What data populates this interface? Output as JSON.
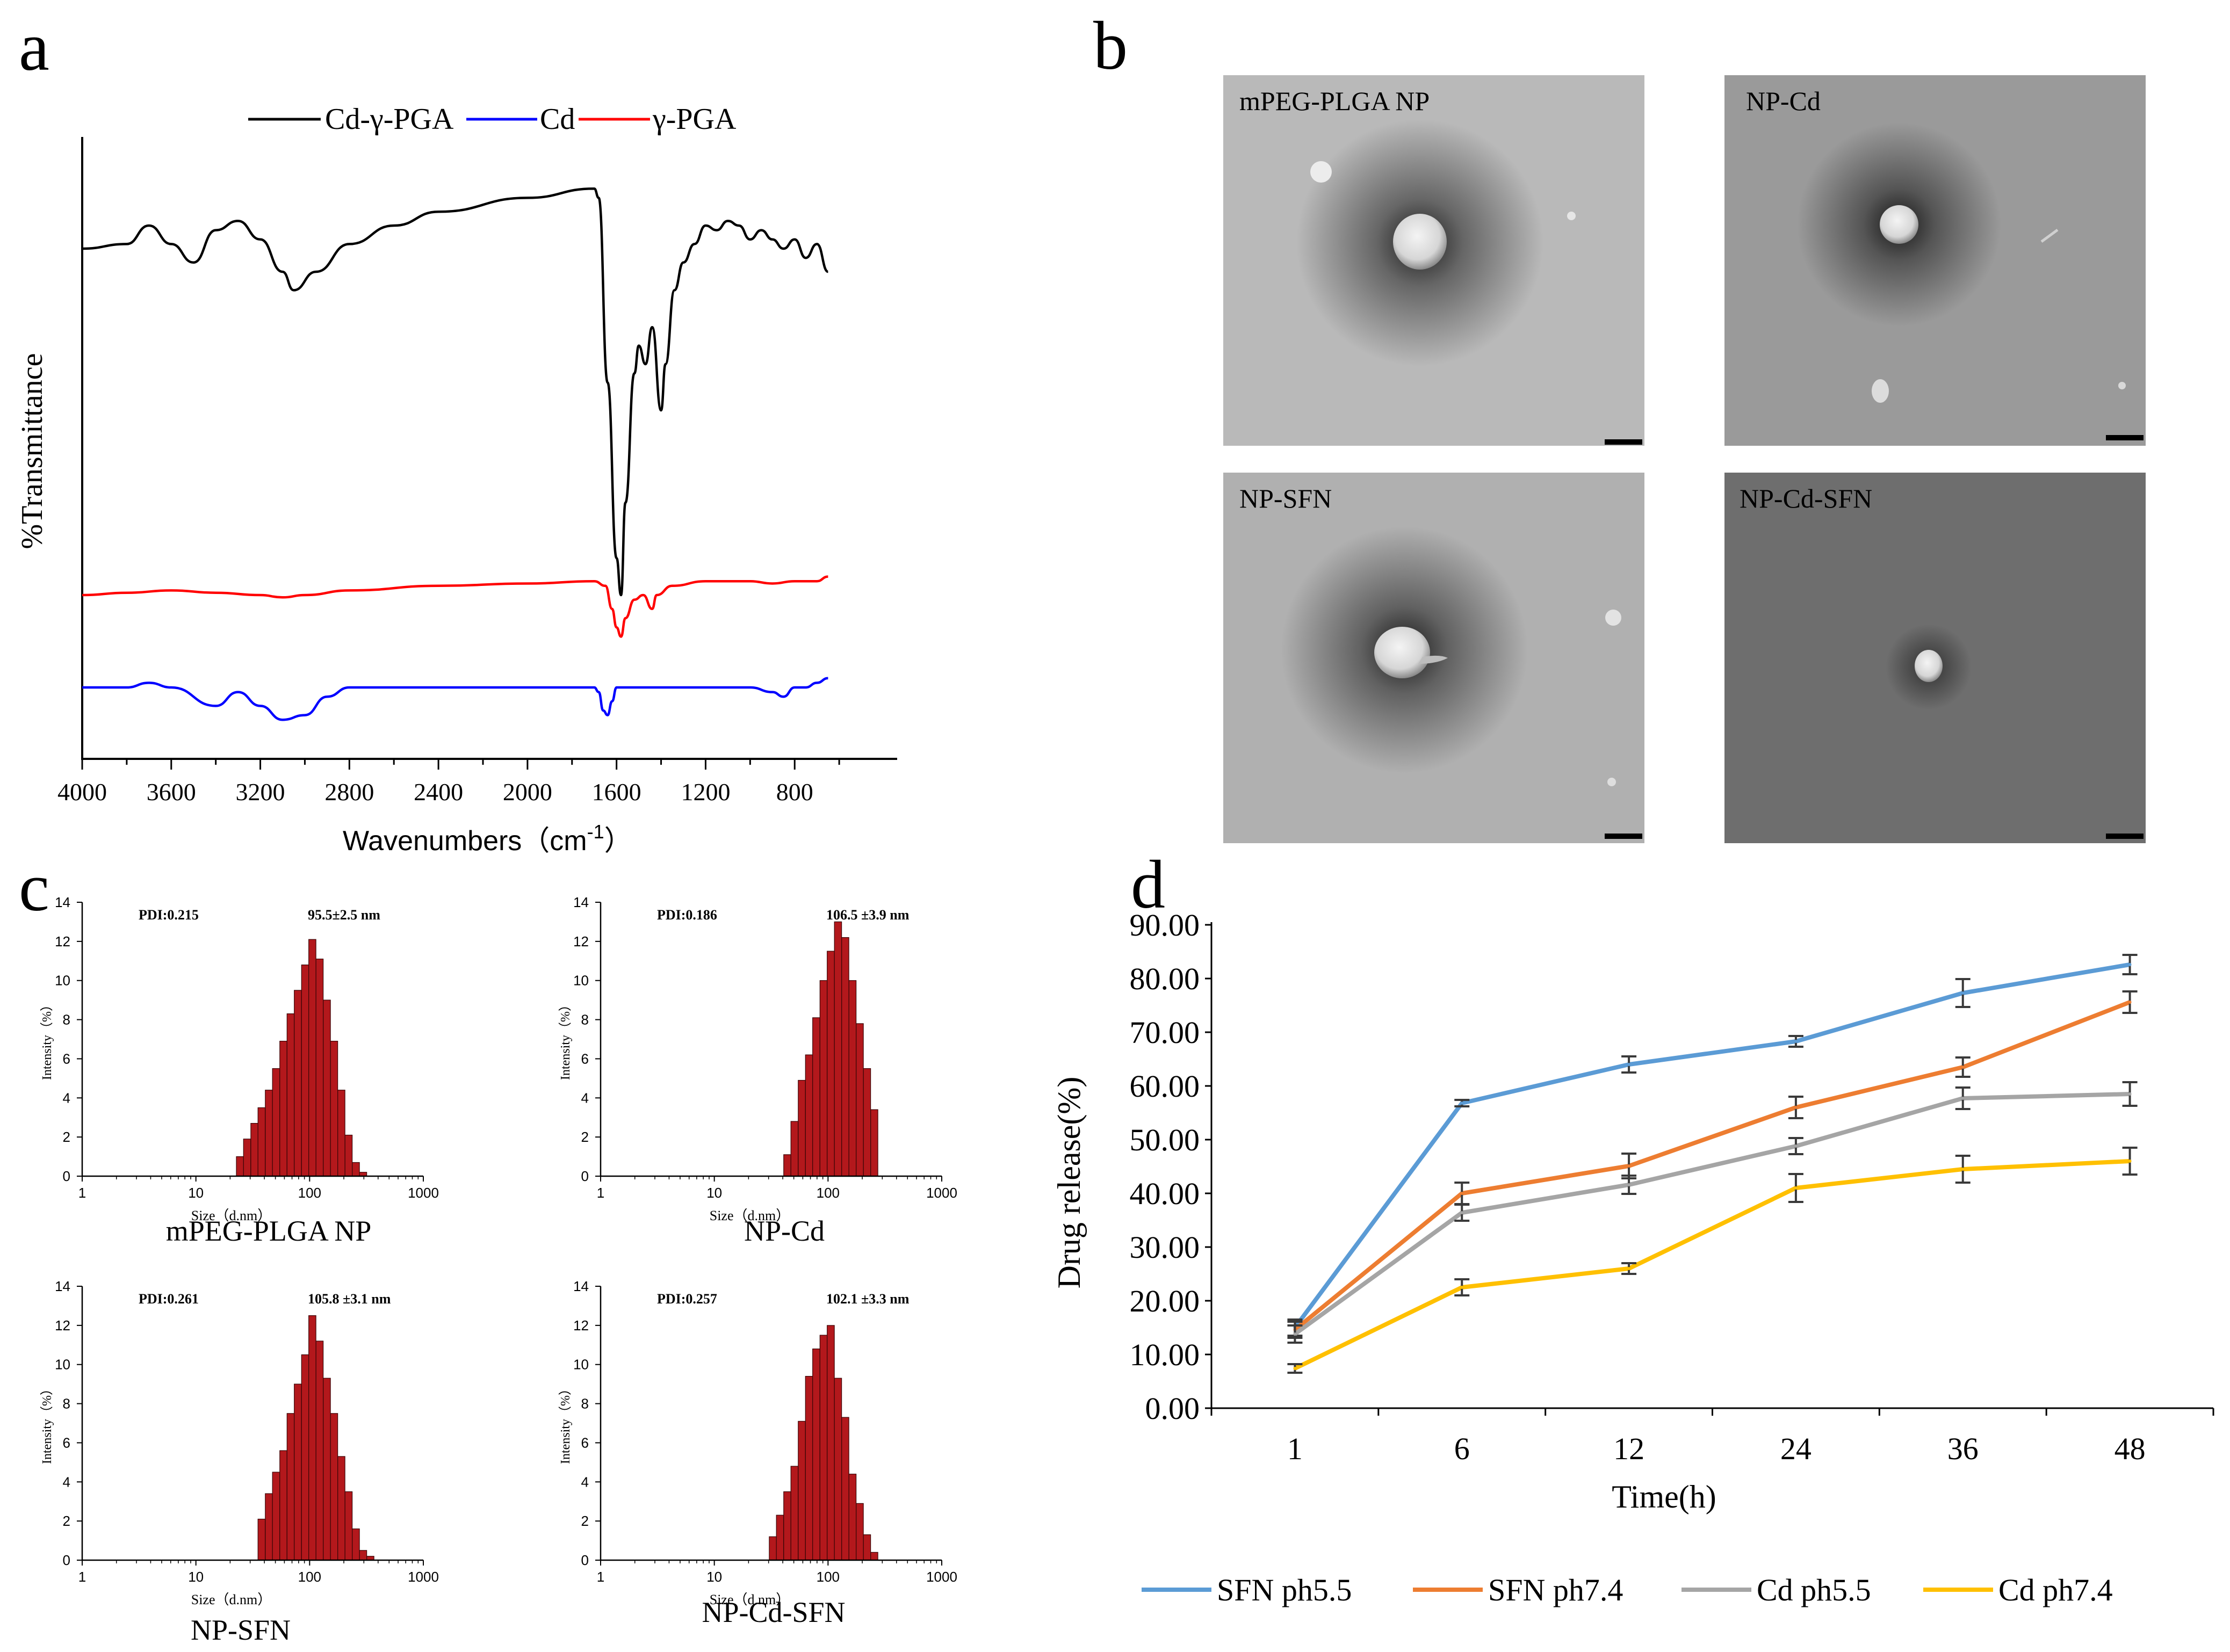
{
  "panels": {
    "a": {
      "letter": "a",
      "legend": [
        {
          "label": "Cd-γ-PGA",
          "color": "#000000"
        },
        {
          "label": "Cd",
          "color": "#0000ff"
        },
        {
          "label": "γ-PGA",
          "color": "#ff0000"
        }
      ],
      "ylabel": "%Transmittance",
      "xlabel": "Wavenumbers（cm",
      "xlabel_sup": "-1",
      "xlabel_close": "）",
      "xticks": [
        "4000",
        "3600",
        "3200",
        "2800",
        "2400",
        "2000",
        "1600",
        "1200",
        "800"
      ]
    },
    "b": {
      "letter": "b",
      "images": [
        {
          "label": "mPEG-PLGA NP",
          "bg": "#b9b9b9"
        },
        {
          "label": "NP-Cd",
          "bg": "#9a9a9a"
        },
        {
          "label": "NP-SFN",
          "bg": "#b0b0b0"
        },
        {
          "label": "NP-Cd-SFN",
          "bg": "#6e6e6e"
        }
      ]
    },
    "c": {
      "letter": "c",
      "ylabel": "Intensity（%）",
      "xlabel": "Size（d.nm）",
      "yticks": [
        "0",
        "2",
        "4",
        "6",
        "8",
        "10",
        "12",
        "14"
      ],
      "xticks": [
        "1",
        "10",
        "100",
        "1000"
      ]
    },
    "d": {
      "letter": "d",
      "bar_color": "#b3181c"
    }
  },
  "chart_data": [
    {
      "type": "line",
      "panel": "a",
      "title": "",
      "xlabel": "Wavenumbers (cm-1)",
      "ylabel": "%Transmittance",
      "xlim": [
        4000,
        400
      ],
      "x_reversed": true,
      "series": [
        {
          "name": "Cd-γ-PGA",
          "color": "#000000",
          "points": [
            [
              4000,
              95
            ],
            [
              3800,
              96
            ],
            [
              3700,
              100
            ],
            [
              3600,
              96
            ],
            [
              3500,
              92
            ],
            [
              3400,
              99
            ],
            [
              3300,
              101
            ],
            [
              3200,
              97
            ],
            [
              3100,
              90
            ],
            [
              3050,
              86
            ],
            [
              2950,
              90
            ],
            [
              2800,
              96
            ],
            [
              2600,
              100
            ],
            [
              2400,
              103
            ],
            [
              2000,
              106
            ],
            [
              1700,
              108
            ],
            [
              1680,
              106
            ],
            [
              1640,
              66
            ],
            [
              1600,
              28
            ],
            [
              1580,
              20
            ],
            [
              1560,
              40
            ],
            [
              1520,
              68
            ],
            [
              1500,
              74
            ],
            [
              1470,
              70
            ],
            [
              1440,
              78
            ],
            [
              1400,
              60
            ],
            [
              1380,
              70
            ],
            [
              1340,
              86
            ],
            [
              1300,
              92
            ],
            [
              1250,
              96
            ],
            [
              1200,
              100
            ],
            [
              1150,
              99
            ],
            [
              1100,
              101
            ],
            [
              1050,
              100
            ],
            [
              1000,
              97
            ],
            [
              950,
              99
            ],
            [
              900,
              97
            ],
            [
              850,
              95
            ],
            [
              800,
              97
            ],
            [
              750,
              93
            ],
            [
              700,
              96
            ],
            [
              650,
              90
            ]
          ]
        },
        {
          "name": "γ-PGA",
          "color": "#ff0000",
          "points": [
            [
              4000,
              20
            ],
            [
              3800,
              20.5
            ],
            [
              3600,
              21
            ],
            [
              3400,
              20.5
            ],
            [
              3200,
              20
            ],
            [
              3100,
              19.5
            ],
            [
              3000,
              20
            ],
            [
              2800,
              21
            ],
            [
              2400,
              22
            ],
            [
              2000,
              22.5
            ],
            [
              1700,
              23
            ],
            [
              1650,
              22
            ],
            [
              1620,
              17
            ],
            [
              1600,
              13
            ],
            [
              1580,
              11
            ],
            [
              1560,
              15
            ],
            [
              1520,
              19
            ],
            [
              1480,
              20
            ],
            [
              1440,
              17
            ],
            [
              1420,
              20
            ],
            [
              1350,
              22
            ],
            [
              1200,
              23
            ],
            [
              1000,
              23
            ],
            [
              900,
              22.5
            ],
            [
              800,
              23
            ],
            [
              700,
              23
            ],
            [
              650,
              24
            ]
          ]
        },
        {
          "name": "Cd",
          "color": "#0000ff",
          "points": [
            [
              4000,
              0
            ],
            [
              3800,
              0
            ],
            [
              3700,
              1
            ],
            [
              3600,
              0
            ],
            [
              3400,
              -4
            ],
            [
              3300,
              -1
            ],
            [
              3200,
              -4
            ],
            [
              3100,
              -7
            ],
            [
              3000,
              -6
            ],
            [
              2900,
              -2
            ],
            [
              2800,
              0
            ],
            [
              2400,
              0
            ],
            [
              2000,
              0
            ],
            [
              1700,
              0
            ],
            [
              1680,
              -1
            ],
            [
              1660,
              -5
            ],
            [
              1640,
              -6
            ],
            [
              1620,
              -3
            ],
            [
              1600,
              0
            ],
            [
              1400,
              0
            ],
            [
              1200,
              0
            ],
            [
              1000,
              0
            ],
            [
              900,
              -1
            ],
            [
              850,
              -2
            ],
            [
              800,
              0
            ],
            [
              750,
              0
            ],
            [
              700,
              1
            ],
            [
              650,
              2
            ]
          ]
        }
      ]
    },
    {
      "type": "bar",
      "panel": "c",
      "title": "mPEG-PLGA NP",
      "pdi": "PDI:0.215",
      "size_label": "95.5±2.5 nm",
      "xlabel": "Size（d.nm）",
      "ylabel": "Intensity（%）",
      "xscale": "log",
      "xlim": [
        1,
        1000
      ],
      "ylim": [
        0,
        14
      ],
      "bins": [
        [
          24.4,
          1.0
        ],
        [
          28.2,
          1.9
        ],
        [
          32.7,
          2.7
        ],
        [
          37.8,
          3.5
        ],
        [
          43.8,
          4.4
        ],
        [
          50.7,
          5.5
        ],
        [
          58.8,
          6.9
        ],
        [
          68.1,
          8.3
        ],
        [
          78.8,
          9.5
        ],
        [
          91.3,
          10.8
        ],
        [
          105.7,
          12.1
        ],
        [
          122.4,
          11.1
        ],
        [
          141.8,
          9.0
        ],
        [
          164.2,
          6.9
        ],
        [
          190.1,
          4.4
        ],
        [
          220.2,
          2.1
        ],
        [
          255.0,
          0.7
        ],
        [
          295.3,
          0.2
        ]
      ]
    },
    {
      "type": "bar",
      "panel": "c",
      "title": "NP-Cd",
      "pdi": "PDI:0.186",
      "size_label": "106.5 ±3.9 nm",
      "xlabel": "Size（d.nm）",
      "ylabel": "Intensity（%）",
      "xscale": "log",
      "xlim": [
        1,
        1000
      ],
      "ylim": [
        0,
        14
      ],
      "bins": [
        [
          43.8,
          1.1
        ],
        [
          50.7,
          2.8
        ],
        [
          58.8,
          4.9
        ],
        [
          68.1,
          6.2
        ],
        [
          78.8,
          8.1
        ],
        [
          91.3,
          10.0
        ],
        [
          105.7,
          11.5
        ],
        [
          122.4,
          13.0
        ],
        [
          141.8,
          12.2
        ],
        [
          164.2,
          10.0
        ],
        [
          190.1,
          7.8
        ],
        [
          220.2,
          5.5
        ],
        [
          255.0,
          3.4
        ]
      ]
    },
    {
      "type": "bar",
      "panel": "c",
      "title": "NP-SFN",
      "pdi": "PDI:0.261",
      "size_label": "105.8 ±3.1 nm",
      "xlabel": "Size（d.nm）",
      "ylabel": "Intensity（%）",
      "xscale": "log",
      "xlim": [
        1,
        1000
      ],
      "ylim": [
        0,
        14
      ],
      "bins": [
        [
          37.8,
          2.1
        ],
        [
          43.8,
          3.4
        ],
        [
          50.7,
          4.5
        ],
        [
          58.8,
          5.6
        ],
        [
          68.1,
          7.5
        ],
        [
          78.8,
          9.0
        ],
        [
          91.3,
          10.5
        ],
        [
          105.7,
          12.5
        ],
        [
          122.4,
          11.2
        ],
        [
          141.8,
          9.3
        ],
        [
          164.2,
          7.5
        ],
        [
          190.1,
          5.3
        ],
        [
          220.2,
          3.5
        ],
        [
          255.0,
          1.6
        ],
        [
          295.3,
          0.5
        ],
        [
          341.9,
          0.2
        ]
      ]
    },
    {
      "type": "bar",
      "panel": "c",
      "title": "NP-Cd-SFN",
      "pdi": "PDI:0.257",
      "size_label": "102.1 ±3.3 nm",
      "xlabel": "Size（d.nm）",
      "ylabel": "Intensity（%）",
      "xscale": "log",
      "xlim": [
        1,
        1000
      ],
      "ylim": [
        0,
        14
      ],
      "bins": [
        [
          32.7,
          1.2
        ],
        [
          37.8,
          2.3
        ],
        [
          43.8,
          3.5
        ],
        [
          50.7,
          4.8
        ],
        [
          58.8,
          7.1
        ],
        [
          68.1,
          9.4
        ],
        [
          78.8,
          10.8
        ],
        [
          91.3,
          11.5
        ],
        [
          105.7,
          12.0
        ],
        [
          122.4,
          9.3
        ],
        [
          141.8,
          7.3
        ],
        [
          164.2,
          4.4
        ],
        [
          190.1,
          2.9
        ],
        [
          220.2,
          1.3
        ],
        [
          255.0,
          0.4
        ]
      ]
    },
    {
      "type": "line",
      "panel": "d",
      "title": "",
      "xlabel": "Time(h)",
      "ylabel": "Drug release(%)",
      "categories": [
        "1",
        "6",
        "12",
        "24",
        "36",
        "48"
      ],
      "ylim": [
        0,
        90
      ],
      "yticks": [
        "0.00",
        "10.00",
        "20.00",
        "30.00",
        "40.00",
        "50.00",
        "60.00",
        "70.00",
        "80.00",
        "90.00"
      ],
      "legend_position": "bottom",
      "series": [
        {
          "name": "SFN ph5.5",
          "color": "#5b9bd5",
          "values": [
            15.0,
            56.8,
            64.0,
            68.3,
            77.3,
            82.6
          ],
          "errors": [
            1.5,
            0.6,
            1.5,
            1.0,
            2.6,
            1.8
          ]
        },
        {
          "name": "SFN ph7.4",
          "color": "#ed7d31",
          "values": [
            14.6,
            40.0,
            45.1,
            56.0,
            63.5,
            75.6
          ],
          "errors": [
            1.5,
            2.0,
            2.3,
            2.0,
            1.8,
            2.0
          ]
        },
        {
          "name": "Cd ph5.5",
          "color": "#a5a5a5",
          "values": [
            13.8,
            36.4,
            41.6,
            48.8,
            57.7,
            58.5
          ],
          "errors": [
            1.6,
            1.5,
            1.7,
            1.5,
            2.0,
            2.2
          ]
        },
        {
          "name": "Cd ph7.4",
          "color": "#ffc000",
          "values": [
            7.4,
            22.5,
            26.0,
            41.0,
            44.5,
            46.0
          ],
          "errors": [
            0.8,
            1.5,
            1.0,
            2.6,
            2.5,
            2.5
          ]
        }
      ]
    }
  ]
}
